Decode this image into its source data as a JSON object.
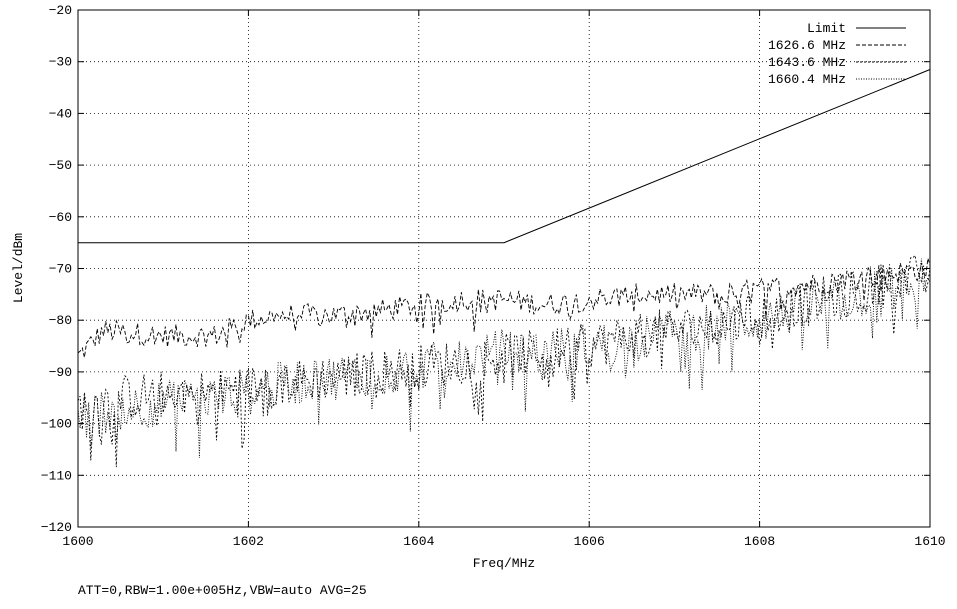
{
  "chart_data": {
    "type": "line",
    "xlabel": "Freq/MHz",
    "ylabel": "Level/dBm",
    "xlim": [
      1600,
      1610
    ],
    "ylim": [
      -120,
      -20
    ],
    "xticks": [
      1600,
      1602,
      1604,
      1606,
      1608,
      1610
    ],
    "yticks": [
      -120,
      -110,
      -100,
      -90,
      -80,
      -70,
      -60,
      -50,
      -40,
      -30,
      -20
    ],
    "grid": true,
    "legend_position": "top-right",
    "series": [
      {
        "name": "Limit",
        "style": "solid",
        "x": [
          1600,
          1605,
          1610
        ],
        "y": [
          -65,
          -65,
          -31.5
        ]
      },
      {
        "name": "1626.6 MHz",
        "style": "dashed",
        "x": [
          1600,
          1600.3,
          1601,
          1601.6,
          1602,
          1602.4,
          1603,
          1603.6,
          1604,
          1604.5,
          1605,
          1605.5,
          1606,
          1606.6,
          1607,
          1607.6,
          1608,
          1608.6,
          1609,
          1609.5,
          1610
        ],
        "y": [
          -87,
          -82,
          -83,
          -83,
          -80,
          -79,
          -79,
          -78,
          -77,
          -76,
          -76,
          -77,
          -76,
          -75,
          -75,
          -75,
          -74,
          -73,
          -72,
          -71,
          -70
        ]
      },
      {
        "name": "1643.6 MHz",
        "style": "dotted",
        "x": [
          1600,
          1600.5,
          1601,
          1601.5,
          1602,
          1602.5,
          1603,
          1603.5,
          1604,
          1604.5,
          1605,
          1605.5,
          1606,
          1606.5,
          1607,
          1607.5,
          1608,
          1608.5,
          1609,
          1609.5,
          1610
        ],
        "y": [
          -97,
          -95,
          -94,
          -94,
          -93,
          -92,
          -91,
          -90,
          -89,
          -88,
          -87,
          -86,
          -85,
          -83,
          -82,
          -81,
          -79,
          -77,
          -75,
          -73,
          -71
        ]
      },
      {
        "name": "1660.4 MHz",
        "style": "densedot",
        "x": [
          1600,
          1600.5,
          1601,
          1601.5,
          1602,
          1602.5,
          1603,
          1603.5,
          1604,
          1604.5,
          1605,
          1605.5,
          1606,
          1606.5,
          1607,
          1607.5,
          1608,
          1608.5,
          1609,
          1609.5,
          1610
        ],
        "y": [
          -99,
          -97,
          -96,
          -95,
          -94,
          -92,
          -91,
          -90,
          -89,
          -88,
          -86,
          -86,
          -85,
          -84,
          -82,
          -81,
          -80,
          -78,
          -76,
          -74,
          -72
        ]
      }
    ]
  },
  "footer": "ATT=0,RBW=1.00e+005Hz,VBW=auto AVG=25"
}
